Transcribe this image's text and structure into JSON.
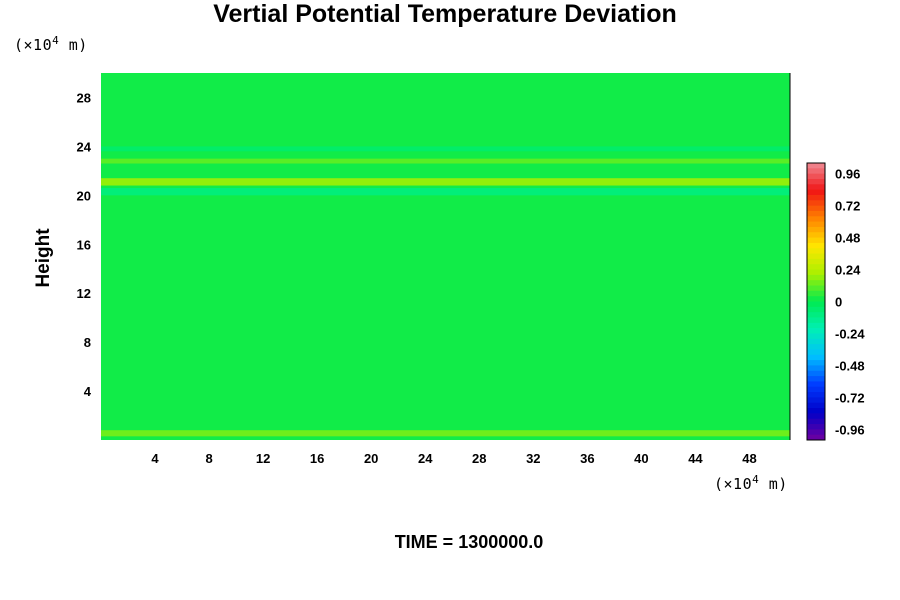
{
  "chart_data": {
    "type": "heatmap",
    "title": "Vertial Potential Temperature Deviation",
    "xlabel": "",
    "ylabel": "Height",
    "x_unit": {
      "prefix": "(×10",
      "exp": "4",
      "suffix": " m)"
    },
    "y_unit": {
      "prefix": "(×10",
      "exp": "4",
      "suffix": " m)"
    },
    "xlim": [
      0,
      51
    ],
    "ylim": [
      0,
      30
    ],
    "x_ticks": [
      4,
      8,
      12,
      16,
      20,
      24,
      28,
      32,
      36,
      40,
      44,
      48
    ],
    "y_ticks": [
      4,
      8,
      12,
      16,
      20,
      24,
      28
    ],
    "colorbar": {
      "range": [
        -1.04,
        1.04
      ],
      "tick_values": [
        0.96,
        0.72,
        0.48,
        0.24,
        0,
        -0.24,
        -0.48,
        -0.72,
        -0.96
      ],
      "tick_labels": [
        "0.96",
        "0.72",
        "0.48",
        "0.24",
        "0",
        "-0.24",
        "-0.48",
        "-0.72",
        "-0.96"
      ]
    },
    "field_description_bands": [
      {
        "height_range": [
          0.3,
          0.8
        ],
        "value": 0.15
      },
      {
        "height_range": [
          20.0,
          20.6
        ],
        "value": -0.1
      },
      {
        "height_range": [
          20.8,
          21.4
        ],
        "value": 0.2
      },
      {
        "height_range": [
          22.6,
          23.0
        ],
        "value": 0.12
      },
      {
        "height_range": [
          23.6,
          24.0
        ],
        "value": -0.06
      }
    ],
    "background_value": 0.02
  },
  "footer": {
    "time_label": "TIME = 1300000.0"
  }
}
